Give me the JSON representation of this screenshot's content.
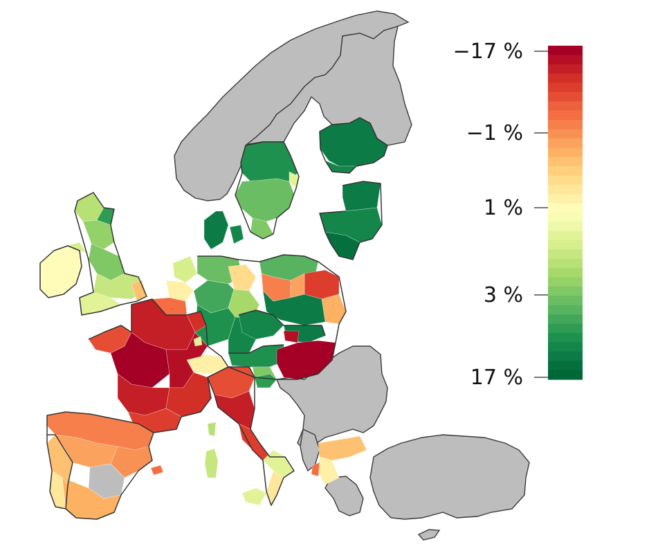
{
  "legend": {
    "ticks": [
      {
        "label": "−17 %",
        "value": -17
      },
      {
        "label": "−1 %",
        "value": -1
      },
      {
        "label": "1 %",
        "value": 1
      },
      {
        "label": "3 %",
        "value": 3
      },
      {
        "label": "17 %",
        "value": 17
      }
    ],
    "colors": [
      "#a50026",
      "#b50f26",
      "#c41e27",
      "#d22f27",
      "#dd3d2d",
      "#e54e35",
      "#ee613d",
      "#f46d43",
      "#f67f4b",
      "#f89254",
      "#fba25e",
      "#fdb163",
      "#fdc171",
      "#fed07e",
      "#fedc8c",
      "#fee79b",
      "#fff0a8",
      "#fffbb8",
      "#f7fcb4",
      "#eef8a8",
      "#e2f397",
      "#d6ee8b",
      "#c6e77f",
      "#b7e075",
      "#a6d96a",
      "#94d168",
      "#80c765",
      "#6bbd63",
      "#57b35f",
      "#42a75a",
      "#2e9c53",
      "#1d914d",
      "#14864a",
      "#0c7b45",
      "#066f3e",
      "#006837"
    ]
  },
  "colors": {
    "no_data": "#bdbdbd",
    "border": "#333333"
  }
}
